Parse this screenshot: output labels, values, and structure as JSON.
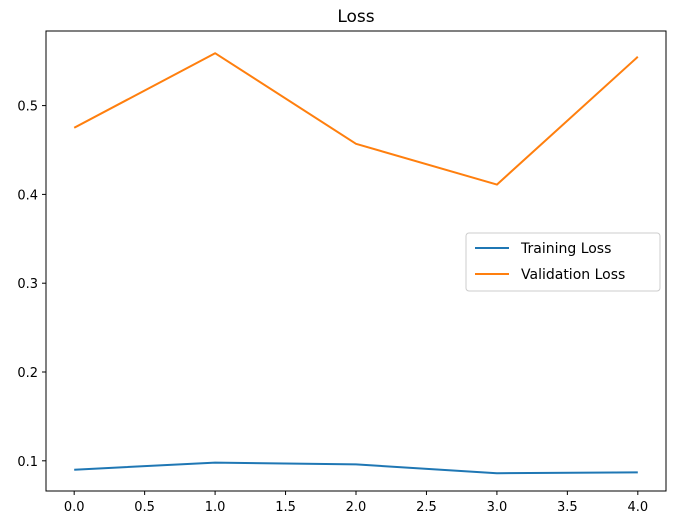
{
  "chart_data": {
    "type": "line",
    "title": "Loss",
    "xlabel": "",
    "ylabel": "",
    "xlim": [
      -0.2,
      4.2
    ],
    "ylim": [
      0.066,
      0.584
    ],
    "x_ticks": [
      0.0,
      0.5,
      1.0,
      1.5,
      2.0,
      2.5,
      3.0,
      3.5,
      4.0
    ],
    "x_tick_labels": [
      "0.0",
      "0.5",
      "1.0",
      "1.5",
      "2.0",
      "2.5",
      "3.0",
      "3.5",
      "4.0"
    ],
    "y_ticks": [
      0.1,
      0.2,
      0.3,
      0.4,
      0.5
    ],
    "y_tick_labels": [
      "0.1",
      "0.2",
      "0.3",
      "0.4",
      "0.5"
    ],
    "grid": false,
    "legend_position": "center-right",
    "x": [
      0,
      1,
      2,
      3,
      4
    ],
    "series": [
      {
        "name": "Training Loss",
        "color": "#1f77b4",
        "values": [
          0.09,
          0.098,
          0.096,
          0.086,
          0.087
        ]
      },
      {
        "name": "Validation Loss",
        "color": "#ff7f0e",
        "values": [
          0.475,
          0.559,
          0.457,
          0.411,
          0.555
        ]
      }
    ]
  }
}
